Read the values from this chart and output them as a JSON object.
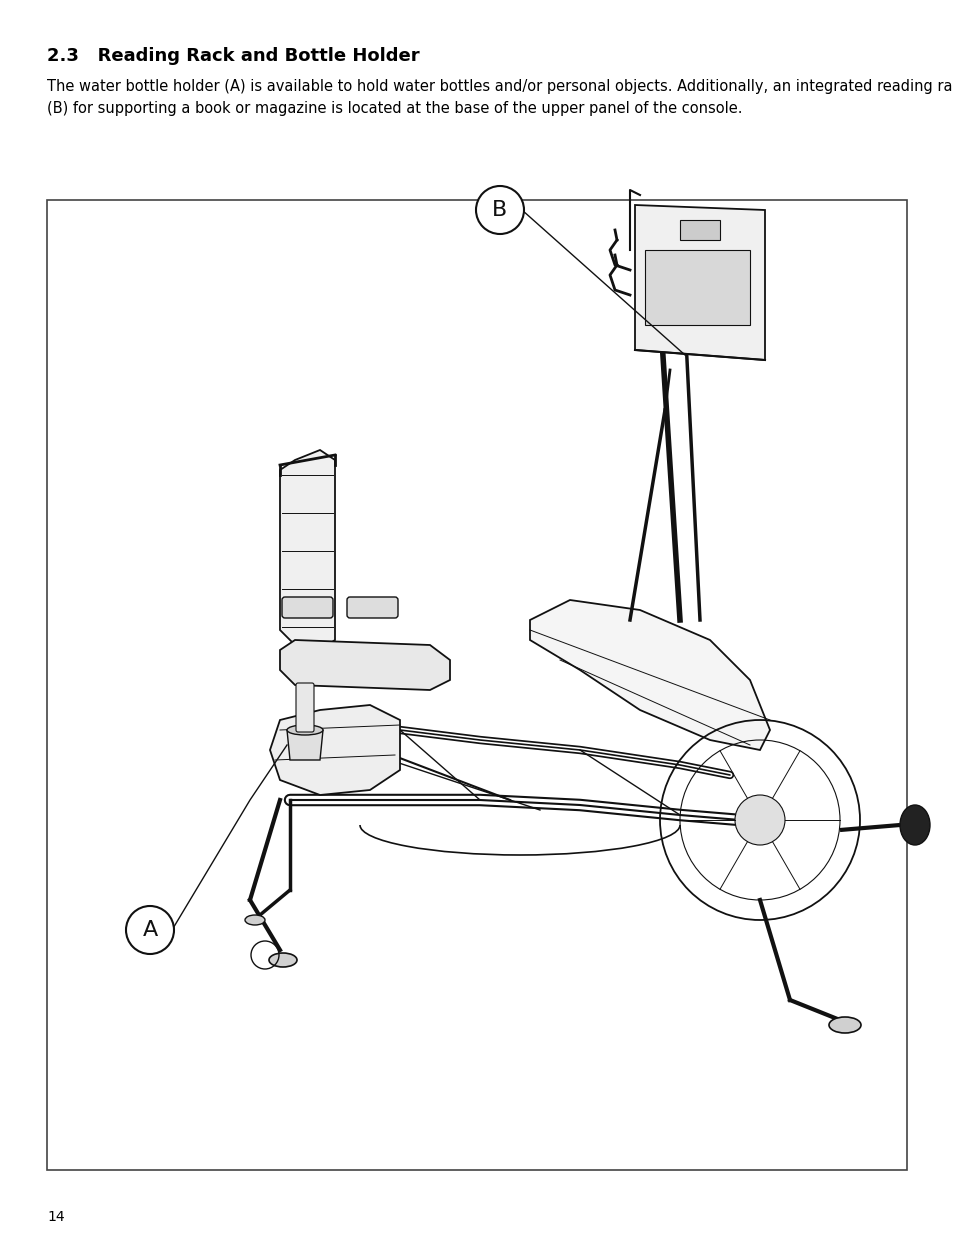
{
  "title_number": "2.3",
  "title_text": "Reading Rack and Bottle Holder",
  "body_text": "The water bottle holder (A) is available to hold water bottles and/or personal objects. Additionally, an integrated reading rack\n(B) for supporting a book or magazine is located at the base of the upper panel of the console.",
  "page_number": "14",
  "label_A": "A",
  "label_B": "B",
  "bg_color": "#ffffff",
  "text_color": "#000000",
  "border_color": "#555555",
  "title_fontsize": 13,
  "body_fontsize": 10.5,
  "page_num_fontsize": 10
}
